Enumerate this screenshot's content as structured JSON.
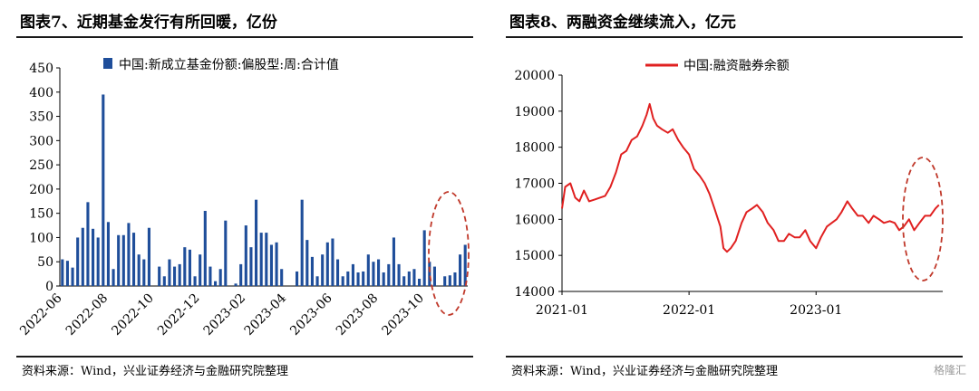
{
  "left": {
    "title": "图表7、近期基金发行有所回暖，亿份",
    "source": "资料来源：Wind，兴业证券经济与金融研究院整理",
    "chart_data": {
      "type": "bar",
      "legend": "中国:新成立基金份额:偏股型:周:合计值",
      "ylim": [
        0,
        450
      ],
      "yticks": [
        0,
        50,
        100,
        150,
        200,
        250,
        300,
        350,
        400,
        450
      ],
      "xtick_labels": [
        "2022-06",
        "2022-08",
        "2022-10",
        "2022-12",
        "2023-02",
        "2023-04",
        "2023-06",
        "2023-08",
        "2023-10"
      ],
      "xtick_positions": [
        0,
        9,
        18,
        27,
        36,
        44,
        53,
        62,
        71
      ],
      "values": [
        55,
        52,
        38,
        100,
        120,
        173,
        118,
        100,
        395,
        132,
        35,
        105,
        105,
        130,
        110,
        65,
        55,
        120,
        0,
        40,
        20,
        55,
        40,
        45,
        80,
        75,
        20,
        65,
        155,
        40,
        10,
        35,
        135,
        0,
        5,
        45,
        125,
        80,
        178,
        110,
        110,
        85,
        90,
        35,
        0,
        0,
        30,
        178,
        95,
        60,
        20,
        65,
        90,
        98,
        55,
        20,
        30,
        45,
        28,
        30,
        65,
        50,
        55,
        28,
        45,
        100,
        45,
        20,
        30,
        35,
        15,
        115,
        50,
        40,
        0,
        20,
        22,
        28,
        65,
        85
      ],
      "color": "#1f4e9a"
    },
    "highlight_color": "#c0392b"
  },
  "right": {
    "title": "图表8、两融资金继续流入，亿元",
    "source": "资料来源：Wind，兴业证券经济与金融研究院整理",
    "watermark": "格隆汇",
    "chart_data": {
      "type": "line",
      "legend": "中国:融资融券余额",
      "ylim": [
        14000,
        20000
      ],
      "yticks": [
        14000,
        15000,
        16000,
        17000,
        18000,
        19000,
        20000
      ],
      "xlim": [
        "2021-01-01",
        "2023-12-31"
      ],
      "xtick_labels": [
        "2021-01",
        "2022-01",
        "2023-01"
      ],
      "x": [
        "2021-01-01",
        "2021-01-10",
        "2021-01-25",
        "2021-02-08",
        "2021-02-20",
        "2021-03-05",
        "2021-03-20",
        "2021-04-05",
        "2021-04-20",
        "2021-05-05",
        "2021-05-20",
        "2021-06-05",
        "2021-06-20",
        "2021-07-05",
        "2021-07-20",
        "2021-08-05",
        "2021-08-20",
        "2021-09-01",
        "2021-09-10",
        "2021-09-20",
        "2021-10-01",
        "2021-10-15",
        "2021-11-01",
        "2021-11-15",
        "2021-12-01",
        "2021-12-15",
        "2022-01-01",
        "2022-01-15",
        "2022-02-01",
        "2022-02-15",
        "2022-03-01",
        "2022-03-15",
        "2022-04-01",
        "2022-04-10",
        "2022-04-20",
        "2022-05-01",
        "2022-05-15",
        "2022-06-01",
        "2022-06-15",
        "2022-07-01",
        "2022-07-15",
        "2022-08-01",
        "2022-08-15",
        "2022-09-01",
        "2022-09-15",
        "2022-10-01",
        "2022-10-15",
        "2022-11-01",
        "2022-11-15",
        "2022-12-01",
        "2022-12-15",
        "2023-01-01",
        "2023-01-15",
        "2023-02-01",
        "2023-02-15",
        "2023-03-01",
        "2023-03-15",
        "2023-04-01",
        "2023-04-15",
        "2023-05-01",
        "2023-05-15",
        "2023-06-01",
        "2023-06-15",
        "2023-07-01",
        "2023-07-15",
        "2023-08-01",
        "2023-08-15",
        "2023-08-28",
        "2023-09-10",
        "2023-09-25",
        "2023-10-10",
        "2023-10-25",
        "2023-11-10",
        "2023-11-25",
        "2023-12-10",
        "2023-12-20"
      ],
      "y": [
        16300,
        16900,
        17000,
        16600,
        16500,
        16800,
        16500,
        16550,
        16600,
        16650,
        16900,
        17300,
        17800,
        17900,
        18200,
        18300,
        18600,
        18900,
        19200,
        18800,
        18600,
        18500,
        18400,
        18500,
        18200,
        18000,
        17800,
        17400,
        17200,
        17000,
        16700,
        16300,
        15800,
        15200,
        15100,
        15200,
        15400,
        15900,
        16200,
        16300,
        16400,
        16200,
        15900,
        15700,
        15400,
        15400,
        15600,
        15500,
        15500,
        15700,
        15400,
        15200,
        15500,
        15800,
        15900,
        16000,
        16200,
        16500,
        16300,
        16100,
        16100,
        15900,
        16100,
        16000,
        15900,
        15950,
        15900,
        15700,
        15800,
        16000,
        15700,
        15900,
        16100,
        16100,
        16300,
        16400
      ],
      "color": "#e02020"
    },
    "highlight_color": "#c0392b"
  }
}
